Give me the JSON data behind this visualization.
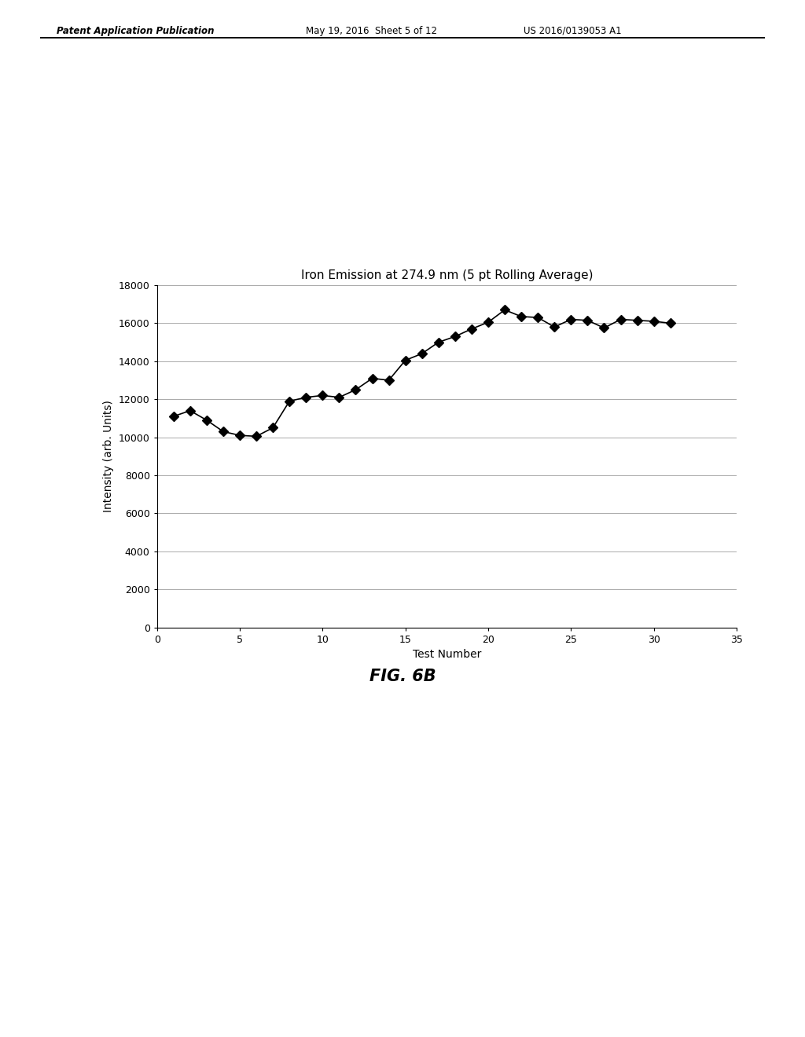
{
  "title": "Iron Emission at 274.9 nm (5 pt Rolling Average)",
  "xlabel": "Test Number",
  "ylabel": "Intensity (arb. Units)",
  "x_values": [
    1,
    2,
    3,
    4,
    5,
    6,
    7,
    8,
    9,
    10,
    11,
    12,
    13,
    14,
    15,
    16,
    17,
    18,
    19,
    20,
    21,
    22,
    23,
    24,
    25,
    26,
    27,
    28,
    29,
    30,
    31
  ],
  "y_values": [
    11100,
    11400,
    10900,
    10300,
    10100,
    10050,
    10500,
    11900,
    12100,
    12200,
    12100,
    12500,
    13100,
    13000,
    14050,
    14400,
    15000,
    15300,
    15700,
    16050,
    16700,
    16350,
    16300,
    15800,
    16200,
    16150,
    15750,
    16200,
    16150,
    16100,
    16000
  ],
  "xlim": [
    0,
    35
  ],
  "ylim": [
    0,
    18000
  ],
  "xticks": [
    0,
    5,
    10,
    15,
    20,
    25,
    30,
    35
  ],
  "yticks": [
    0,
    2000,
    4000,
    6000,
    8000,
    10000,
    12000,
    14000,
    16000,
    18000
  ],
  "line_color": "#000000",
  "marker_color": "#000000",
  "marker": "D",
  "marker_size": 6,
  "line_width": 1.2,
  "title_fontsize": 11,
  "label_fontsize": 10,
  "tick_fontsize": 9,
  "fig_caption": "FIG. 6B",
  "header_left": "Patent Application Publication",
  "header_center": "May 19, 2016  Sheet 5 of 12",
  "header_right": "US 2016/0139053 A1",
  "background_color": "#ffffff",
  "grid_color": "#aaaaaa"
}
